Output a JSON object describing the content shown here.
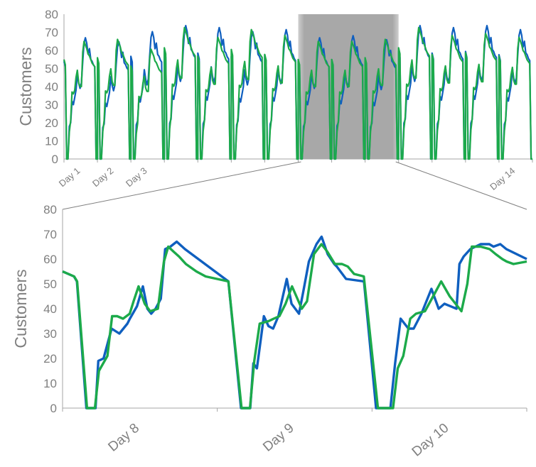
{
  "colors": {
    "series_a": "#0f5fbf",
    "series_b": "#1caa4a",
    "axis": "#a6a6a6",
    "text": "#7f7f7f",
    "highlight": "#a8a8a8"
  },
  "chart_data": [
    {
      "type": "line",
      "panel": "overview",
      "title": "",
      "xlabel": "",
      "ylabel": "Customers",
      "ylim": [
        0,
        80
      ],
      "yticks": [
        0,
        10,
        20,
        30,
        40,
        50,
        60,
        70,
        80
      ],
      "xlim": [
        0,
        14
      ],
      "tick_labels": [
        {
          "text": "Day 1",
          "x": 0.5
        },
        {
          "text": "Day 2",
          "x": 1.5
        },
        {
          "text": "Day 3",
          "x": 2.5
        },
        {
          "text": "Day 14",
          "x": 13.5
        }
      ],
      "highlight_range": [
        7,
        10
      ],
      "grid": false,
      "legend": "none",
      "day_profile": {
        "x": [
          0.0,
          0.04,
          0.08,
          0.12,
          0.16,
          0.2,
          0.24,
          0.28,
          0.32,
          0.36,
          0.4,
          0.44,
          0.48,
          0.52,
          0.56,
          0.6,
          0.64,
          0.68,
          0.72,
          0.76,
          0.8,
          0.84,
          0.88,
          0.92,
          0.96,
          1.0
        ],
        "series_a": [
          54,
          51,
          0,
          0,
          18,
          20,
          32,
          30,
          34,
          38,
          47,
          42,
          39,
          42,
          54,
          64,
          67,
          64,
          58,
          61,
          55,
          54,
          52,
          51,
          0,
          0
        ],
        "series_b": [
          55,
          52,
          0,
          0,
          15,
          21,
          37,
          36,
          38,
          45,
          49,
          42,
          40,
          40,
          59,
          65,
          63,
          61,
          58,
          57,
          55,
          53,
          52,
          51,
          0,
          0
        ]
      },
      "day_offsets": [
        {
          "day": 1,
          "a": 0,
          "b": 0
        },
        {
          "day": 2,
          "a": -2,
          "b": 1
        },
        {
          "day": 3,
          "a": 3,
          "b": -4
        },
        {
          "day": 4,
          "a": 6,
          "b": 7
        },
        {
          "day": 5,
          "a": 5,
          "b": 2
        },
        {
          "day": 6,
          "a": 3,
          "b": 6
        },
        {
          "day": 7,
          "a": 4,
          "b": 3
        },
        {
          "day": 8,
          "a": 0,
          "b": 0
        },
        {
          "day": 9,
          "a": 1,
          "b": 0
        },
        {
          "day": 10,
          "a": -1,
          "b": 1
        },
        {
          "day": 11,
          "a": 6,
          "b": 7
        },
        {
          "day": 12,
          "a": 5,
          "b": 3
        },
        {
          "day": 13,
          "a": 6,
          "b": 4
        },
        {
          "day": 14,
          "a": 4,
          "b": 2
        }
      ],
      "series": [
        {
          "key": "series_a",
          "color": "#0f5fbf"
        },
        {
          "key": "series_b",
          "color": "#1caa4a"
        }
      ]
    },
    {
      "type": "line",
      "panel": "zoom",
      "title": "",
      "xlabel": "",
      "ylabel": "Customers",
      "ylim": [
        0,
        80
      ],
      "yticks": [
        0,
        10,
        20,
        30,
        40,
        50,
        60,
        70,
        80
      ],
      "xlim": [
        0,
        3
      ],
      "tick_labels": [
        {
          "text": "Day 8",
          "x": 0.5
        },
        {
          "text": "Day 9",
          "x": 1.5
        },
        {
          "text": "Day 10",
          "x": 2.5
        }
      ],
      "grid": false,
      "legend": "none",
      "series": [
        {
          "key": "series_a",
          "color": "#0f5fbf",
          "x": [
            0.0,
            0.074,
            0.093,
            0.154,
            0.185,
            0.213,
            0.231,
            0.265,
            0.317,
            0.367,
            0.419,
            0.435,
            0.481,
            0.519,
            0.548,
            0.573,
            0.601,
            0.635,
            0.663,
            0.697,
            0.738,
            0.791,
            1.072,
            1.153,
            1.18,
            1.213,
            1.233,
            1.256,
            1.301,
            1.331,
            1.361,
            1.395,
            1.449,
            1.48,
            1.528,
            1.556,
            1.592,
            1.641,
            1.674,
            1.713,
            1.756,
            1.772,
            1.832,
            1.948,
            2.026,
            2.073,
            2.119,
            2.149,
            2.185,
            2.235,
            2.269,
            2.319,
            2.384,
            2.431,
            2.468,
            2.546,
            2.565,
            2.592,
            2.635,
            2.702,
            2.758,
            2.785,
            2.829,
            2.868,
            3.0
          ],
          "y": [
            55,
            53,
            51,
            0,
            0,
            0,
            19,
            20,
            32,
            30,
            34,
            36,
            41,
            49,
            40,
            38,
            40,
            44,
            64,
            65,
            67,
            64,
            51,
            0,
            0,
            0,
            18,
            16,
            37,
            33,
            32,
            37,
            52,
            42,
            38,
            47,
            59,
            66,
            69,
            62,
            58,
            57,
            52,
            51,
            0,
            0,
            0,
            18,
            36,
            32,
            32,
            38,
            48,
            40,
            42,
            40,
            58,
            61,
            64,
            66,
            66,
            65,
            66,
            64,
            60
          ]
        },
        {
          "key": "series_b",
          "color": "#1caa4a",
          "x": [
            0.0,
            0.075,
            0.094,
            0.158,
            0.181,
            0.209,
            0.235,
            0.29,
            0.32,
            0.353,
            0.391,
            0.434,
            0.459,
            0.491,
            0.531,
            0.566,
            0.616,
            0.655,
            0.683,
            0.717,
            0.753,
            0.797,
            0.865,
            0.925,
            1.072,
            1.157,
            1.179,
            1.211,
            1.239,
            1.274,
            1.331,
            1.365,
            1.401,
            1.441,
            1.483,
            1.546,
            1.58,
            1.625,
            1.673,
            1.711,
            1.76,
            1.806,
            1.843,
            1.884,
            1.947,
            2.038,
            2.087,
            2.136,
            2.166,
            2.202,
            2.247,
            2.284,
            2.342,
            2.395,
            2.447,
            2.502,
            2.578,
            2.616,
            2.645,
            2.702,
            2.76,
            2.799,
            2.842,
            2.87,
            2.914,
            3.0
          ],
          "y": [
            55,
            53,
            51,
            0,
            0,
            0,
            15,
            21,
            37,
            37,
            36,
            38,
            43,
            49,
            42,
            39,
            40,
            59,
            65,
            63,
            61,
            58,
            55,
            53,
            51,
            0,
            0,
            0,
            19,
            34,
            35,
            36,
            37,
            42,
            49,
            40,
            43,
            62,
            66,
            63,
            58,
            58,
            57,
            54,
            53,
            0,
            0,
            0,
            16,
            21,
            36,
            38,
            39,
            45,
            51,
            45,
            39,
            50,
            65,
            65,
            64,
            62,
            60,
            59,
            58,
            59
          ]
        }
      ]
    }
  ]
}
